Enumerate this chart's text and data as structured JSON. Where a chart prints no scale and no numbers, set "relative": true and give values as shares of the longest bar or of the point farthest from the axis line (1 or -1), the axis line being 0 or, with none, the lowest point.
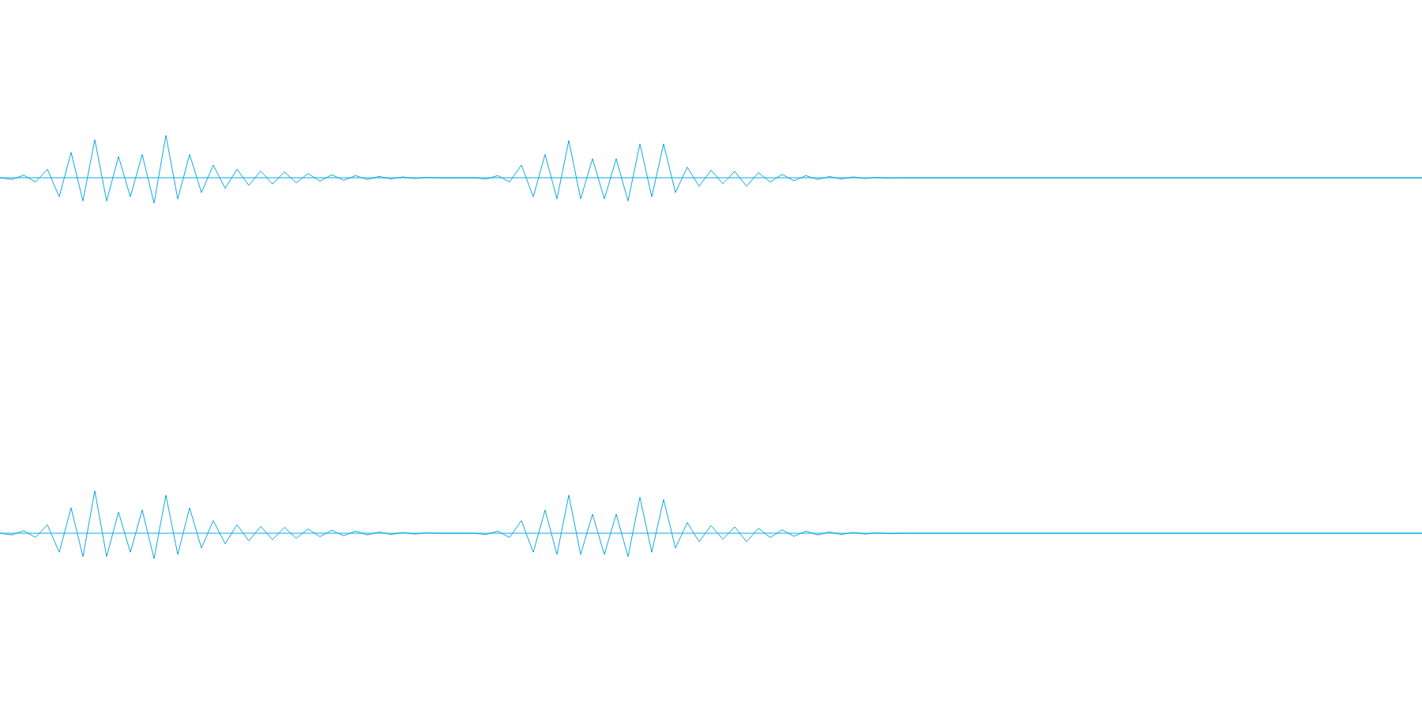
{
  "chart_data": [
    {
      "type": "line",
      "relative": true,
      "color": "#0aa8e0",
      "ref_lines": [
        {
          "axis": "y",
          "value": 0,
          "color": "#0aa8e0"
        }
      ],
      "categories": [
        null,
        null,
        null,
        null,
        null,
        null,
        null,
        null,
        null,
        null,
        null,
        null,
        null,
        null,
        null,
        null,
        null,
        null,
        null,
        null,
        null,
        null,
        null,
        null,
        null,
        null,
        null,
        null,
        null,
        null,
        null,
        null,
        null,
        null,
        null,
        null,
        null,
        null,
        null,
        null,
        null,
        null,
        null,
        null,
        null,
        null,
        null,
        null,
        null,
        null,
        null,
        null,
        null,
        null,
        null,
        null,
        null,
        null,
        null,
        null,
        null,
        null,
        null,
        null,
        null,
        null,
        null,
        null,
        null,
        null,
        null,
        null,
        null,
        null,
        null,
        null,
        null,
        null,
        null,
        null,
        null,
        null,
        null,
        null,
        null,
        null,
        null,
        null,
        null,
        null,
        null,
        null,
        null,
        null,
        null,
        null,
        null,
        null,
        null,
        null,
        null,
        null,
        null,
        null,
        null,
        null,
        null,
        null,
        null,
        null,
        null,
        null,
        null,
        null,
        null,
        null,
        null,
        null,
        null,
        null,
        null
      ],
      "values": [
        0,
        -0.04,
        0.06,
        -0.1,
        0.2,
        -0.45,
        0.6,
        -0.55,
        0.9,
        -0.55,
        0.5,
        -0.45,
        0.55,
        -0.6,
        1.0,
        -0.5,
        0.55,
        -0.35,
        0.3,
        -0.25,
        0.2,
        -0.18,
        0.16,
        -0.15,
        0.14,
        -0.12,
        0.1,
        -0.08,
        0.07,
        -0.06,
        0.05,
        -0.04,
        0.03,
        -0.03,
        0.02,
        -0.02,
        0.01,
        0,
        0,
        0,
        0,
        -0.03,
        0.05,
        -0.1,
        0.3,
        -0.45,
        0.55,
        -0.5,
        0.88,
        -0.5,
        0.45,
        -0.5,
        0.45,
        -0.55,
        0.8,
        -0.45,
        0.8,
        -0.35,
        0.25,
        -0.2,
        0.18,
        -0.14,
        0.15,
        -0.2,
        0.12,
        -0.1,
        0.08,
        -0.07,
        0.05,
        -0.04,
        0.03,
        -0.03,
        0.02,
        -0.02,
        0.01,
        -0.01,
        0,
        0,
        0,
        0,
        0,
        0,
        0,
        0,
        0,
        0,
        0,
        0,
        0,
        0,
        0,
        0,
        0,
        0,
        0,
        0,
        0,
        0,
        0,
        0,
        0,
        0,
        0,
        0,
        0,
        0,
        0,
        0,
        0,
        0,
        0,
        0,
        0,
        0,
        0,
        0,
        0,
        0,
        0,
        0,
        0
      ]
    },
    {
      "type": "line",
      "relative": true,
      "color": "#0aa8e0",
      "ref_lines": [
        {
          "axis": "y",
          "value": 0,
          "color": "#0aa8e0"
        }
      ],
      "categories": [
        null,
        null,
        null,
        null,
        null,
        null,
        null,
        null,
        null,
        null,
        null,
        null,
        null,
        null,
        null,
        null,
        null,
        null,
        null,
        null,
        null,
        null,
        null,
        null,
        null,
        null,
        null,
        null,
        null,
        null,
        null,
        null,
        null,
        null,
        null,
        null,
        null,
        null,
        null,
        null,
        null,
        null,
        null,
        null,
        null,
        null,
        null,
        null,
        null,
        null,
        null,
        null,
        null,
        null,
        null,
        null,
        null,
        null,
        null,
        null,
        null,
        null,
        null,
        null,
        null,
        null,
        null,
        null,
        null,
        null,
        null,
        null,
        null,
        null,
        null,
        null,
        null,
        null,
        null,
        null,
        null,
        null,
        null,
        null,
        null,
        null,
        null,
        null,
        null,
        null,
        null,
        null,
        null,
        null,
        null,
        null,
        null,
        null,
        null,
        null,
        null,
        null,
        null,
        null,
        null,
        null,
        null,
        null,
        null,
        null,
        null,
        null,
        null,
        null,
        null,
        null,
        null,
        null,
        null,
        null,
        null
      ],
      "values": [
        0,
        -0.04,
        0.06,
        -0.1,
        0.2,
        -0.45,
        0.6,
        -0.55,
        1.0,
        -0.55,
        0.5,
        -0.45,
        0.55,
        -0.6,
        0.9,
        -0.5,
        0.6,
        -0.35,
        0.3,
        -0.25,
        0.2,
        -0.18,
        0.16,
        -0.15,
        0.14,
        -0.12,
        0.1,
        -0.08,
        0.07,
        -0.06,
        0.05,
        -0.04,
        0.03,
        -0.03,
        0.02,
        -0.02,
        0.01,
        0,
        0,
        0,
        0,
        -0.03,
        0.05,
        -0.1,
        0.3,
        -0.45,
        0.55,
        -0.5,
        0.9,
        -0.5,
        0.45,
        -0.5,
        0.45,
        -0.55,
        0.85,
        -0.45,
        0.8,
        -0.35,
        0.25,
        -0.2,
        0.18,
        -0.14,
        0.15,
        -0.2,
        0.12,
        -0.1,
        0.08,
        -0.07,
        0.05,
        -0.04,
        0.03,
        -0.03,
        0.02,
        -0.02,
        0.01,
        -0.01,
        0,
        0,
        0,
        0,
        0,
        0,
        0,
        0,
        0,
        0,
        0,
        0,
        0,
        0,
        0,
        0,
        0,
        0,
        0,
        0,
        0,
        0,
        0,
        0,
        0,
        0,
        0,
        0,
        0,
        0,
        0,
        0,
        0,
        0,
        0,
        0,
        0,
        0,
        0,
        0,
        0,
        0,
        0,
        0,
        0
      ]
    }
  ]
}
